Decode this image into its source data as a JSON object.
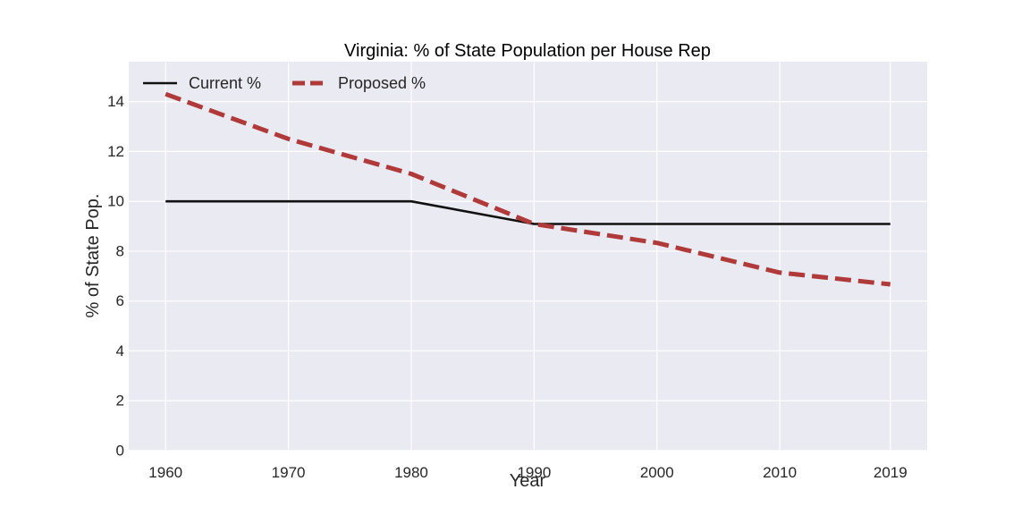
{
  "chart_data": {
    "type": "line",
    "title": "Virginia: % of State Population per House Rep",
    "xlabel": "Year",
    "ylabel": "% of State Pop.",
    "x": [
      1960,
      1970,
      1980,
      1990,
      2000,
      2010,
      2019
    ],
    "xticks": [
      1960,
      1970,
      1980,
      1990,
      2000,
      2010,
      2019
    ],
    "xlim": [
      1957,
      2022
    ],
    "ylim": [
      0,
      15.6
    ],
    "yticks": [
      0,
      2,
      4,
      6,
      8,
      10,
      12,
      14
    ],
    "grid": true,
    "legend_position": "top-left",
    "series": [
      {
        "name": "Current %",
        "values": [
          10.0,
          10.0,
          10.0,
          9.09,
          9.09,
          9.09,
          9.09
        ],
        "color": "#111111",
        "style": "solid"
      },
      {
        "name": "Proposed %",
        "values": [
          14.3,
          12.5,
          11.1,
          9.09,
          8.33,
          7.14,
          6.67
        ],
        "color": "#b03a3a",
        "style": "dashed"
      }
    ]
  },
  "colors": {
    "plot_background": "#eaeaf2",
    "grid": "#ffffff"
  }
}
